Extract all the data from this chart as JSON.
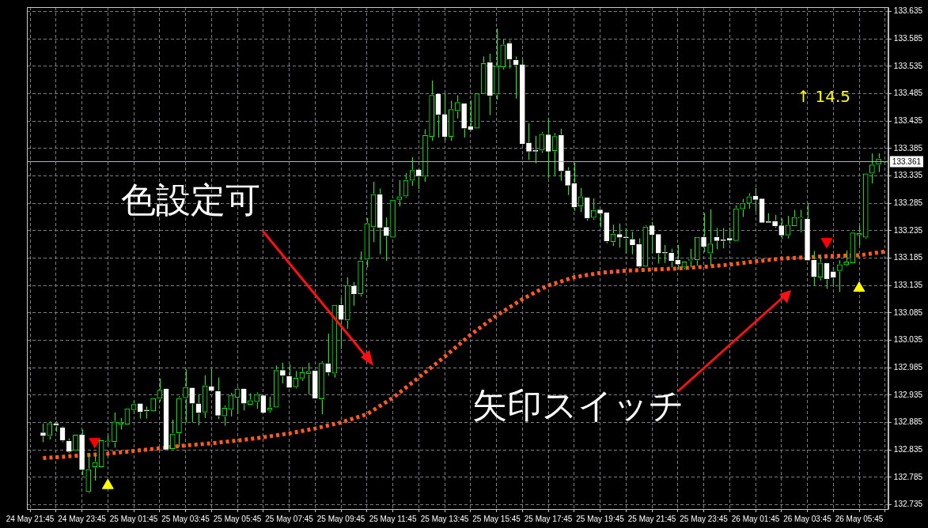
{
  "chart_data": {
    "type": "candlestick",
    "color": "#00ff00",
    "colors": [
      null,
      null,
      "#ffffff",
      "#00ff00",
      "#ffffff",
      "#ffffff",
      "#ffffff",
      "#00ff00",
      "#ffffff",
      "#00ff00",
      "#00ff00",
      "#00ff00",
      "#00ff00",
      "#00ff00",
      "#00ff00",
      "#00ff00",
      "#00ff00",
      "#ffffff",
      "#ffffff",
      "#00ff00",
      "#00ff00",
      "#ffffff",
      "#00ff00",
      "#00ff00",
      "#00ff00",
      "#ffffff",
      "#ffffff",
      "#00ff00",
      "#ffffff",
      "#ffffff",
      "#00ff00",
      "#00ff00",
      "#00ff00",
      "#ffffff",
      "#00ff00",
      "#00ff00",
      "#ffffff",
      "#00ff00",
      "#00ff00",
      "#ffffff",
      "#ffffff",
      "#00ff00",
      "#00ff00",
      "#00ff00",
      "#ffffff",
      "#00ff00",
      "#ffffff",
      "#00ff00",
      "#ffffff",
      "#00ff00",
      "#ffffff",
      "#00ff00",
      "#00ff00",
      "#00ff00",
      "#ffffff",
      "#ffffff",
      "#00ff00",
      "#00ff00",
      "#00ff00",
      "#00ff00",
      "#ffffff",
      "#00ff00",
      "#00ff00",
      "#ffffff",
      "#ffffff",
      "#00ff00",
      "#00ff00",
      "#ffffff",
      "#ffffff",
      "#00ff00",
      "#00ff00",
      "#ffffff",
      "#00ff00",
      "#00ff00",
      "#ffffff",
      "#ffffff",
      "#ffffff",
      "#ffffff",
      "#ffffff",
      "#00ff00",
      "#ffffff",
      "#00ff00",
      "#ffffff",
      "#ffffff",
      "#ffffff",
      "#00ff00",
      "#ffffff",
      "#00ff00",
      "#ffffff",
      "#ffffff",
      "#00ff00",
      "#ffffff",
      "#ffffff",
      "#ffffff",
      "#ffffff",
      "#00ff00",
      "#ffffff",
      "#ffffff",
      "#ffffff",
      "#ffffff",
      "#ffffff",
      "#00ff00",
      "#00ff00",
      "#00ff00",
      "#ffffff",
      "#00ff00",
      "#ffffff",
      "#ffffff",
      "#ffffff",
      "#00ff00",
      "#00ff00",
      "#00ff00",
      "#ffffff",
      "#ffffff",
      "#ffffff",
      "#ffffff",
      "#ffffff",
      "#00ff00",
      "#00ff00",
      "#00ff00",
      "#ffffff",
      "#ffffff",
      "#00ff00",
      "#ffffff",
      "#ffffff",
      "#00ff00",
      "#00ff00",
      "#00ff00",
      "#00ff00",
      "#00ff00",
      "#00ff00",
      "#00ff00",
      "#00ff00"
    ],
    "categories": [
      "24 May 21:45",
      null,
      null,
      null,
      null,
      null,
      null,
      null,
      "24 May 23:45",
      null,
      null,
      null,
      null,
      null,
      null,
      null,
      "25 May 01:45",
      null,
      null,
      null,
      null,
      null,
      null,
      null,
      "25 May 03:45",
      null,
      null,
      null,
      null,
      null,
      null,
      null,
      "25 May 05:45",
      null,
      null,
      null,
      null,
      null,
      null,
      null,
      "25 May 07:45",
      null,
      null,
      null,
      null,
      null,
      null,
      null,
      "25 May 09:45",
      null,
      null,
      null,
      null,
      null,
      null,
      null,
      "25 May 11:45",
      null,
      null,
      null,
      null,
      null,
      null,
      null,
      "25 May 13:45",
      null,
      null,
      null,
      null,
      null,
      null,
      null,
      "25 May 15:45",
      null,
      null,
      null,
      null,
      null,
      null,
      null,
      "25 May 17:45",
      null,
      null,
      null,
      null,
      null,
      null,
      null,
      "25 May 19:45",
      null,
      null,
      null,
      null,
      null,
      null,
      null,
      "25 May 21:45",
      null,
      null,
      null,
      null,
      null,
      null,
      null,
      "25 May 23:45",
      null,
      null,
      null,
      null,
      null,
      null,
      null,
      "26 May 01:45",
      null,
      null,
      null,
      null,
      null,
      null,
      null,
      "26 May 03:45",
      null,
      null,
      null,
      null,
      null,
      null,
      null,
      "26 May 05:45",
      null,
      null,
      null,
      null
    ],
    "ohlc": [
      null,
      null,
      [
        132.866,
        132.883,
        132.849,
        132.861
      ],
      [
        132.861,
        132.887,
        132.854,
        132.883
      ],
      [
        132.883,
        132.887,
        132.868,
        132.88
      ],
      [
        132.875,
        132.878,
        132.849,
        132.853
      ],
      [
        132.851,
        132.856,
        132.829,
        132.832
      ],
      [
        132.834,
        132.862,
        132.832,
        132.862
      ],
      [
        132.862,
        132.872,
        132.789,
        132.799
      ],
      [
        132.759,
        132.829,
        132.756,
        132.799
      ],
      [
        132.804,
        132.826,
        132.779,
        132.812
      ],
      [
        132.804,
        132.852,
        132.803,
        132.852
      ],
      [
        132.85,
        132.862,
        132.842,
        132.851
      ],
      [
        132.85,
        132.903,
        132.839,
        132.886
      ],
      [
        132.882,
        132.893,
        132.872,
        132.885
      ],
      [
        132.882,
        132.91,
        132.882,
        132.91
      ],
      [
        132.908,
        132.925,
        132.902,
        132.918
      ],
      [
        132.919,
        132.919,
        132.892,
        132.905
      ],
      [
        132.907,
        132.914,
        132.892,
        132.906
      ],
      [
        132.906,
        132.929,
        132.906,
        132.929
      ],
      [
        132.929,
        132.965,
        132.923,
        132.944
      ],
      [
        132.946,
        132.946,
        132.834,
        132.836
      ],
      [
        132.837,
        132.89,
        132.835,
        132.864
      ],
      [
        132.866,
        132.933,
        132.84,
        132.929
      ],
      [
        132.93,
        132.982,
        132.885,
        132.949
      ],
      [
        132.948,
        132.948,
        132.885,
        132.92
      ],
      [
        132.919,
        132.937,
        132.88,
        132.903
      ],
      [
        132.904,
        132.971,
        132.893,
        132.952
      ],
      [
        132.95,
        132.983,
        132.941,
        132.943
      ],
      [
        132.942,
        132.967,
        132.891,
        132.898
      ],
      [
        132.897,
        132.916,
        132.879,
        132.911
      ],
      [
        132.909,
        132.939,
        132.896,
        132.934
      ],
      [
        132.931,
        132.95,
        132.9,
        132.946
      ],
      [
        132.946,
        132.946,
        132.907,
        132.92
      ],
      [
        132.918,
        132.938,
        132.916,
        132.925
      ],
      [
        132.923,
        132.94,
        132.91,
        132.936
      ],
      [
        132.934,
        132.934,
        132.903,
        132.903
      ],
      [
        132.907,
        132.932,
        132.903,
        132.911
      ],
      [
        132.913,
        132.989,
        132.913,
        132.98
      ],
      [
        132.98,
        132.994,
        132.956,
        132.971
      ],
      [
        132.969,
        132.991,
        132.949,
        132.949
      ],
      [
        132.95,
        132.979,
        132.947,
        132.966
      ],
      [
        132.966,
        132.986,
        132.961,
        132.976
      ],
      [
        132.974,
        132.994,
        132.936,
        132.978
      ],
      [
        132.979,
        132.979,
        132.929,
        132.929
      ],
      [
        132.928,
        132.997,
        132.9,
        132.993
      ],
      [
        132.992,
        133.047,
        132.97,
        132.977
      ],
      [
        132.975,
        133.099,
        132.967,
        133.099
      ],
      [
        133.099,
        133.112,
        133.019,
        133.073
      ],
      [
        133.072,
        133.15,
        133.056,
        133.135
      ],
      [
        133.134,
        133.141,
        133.098,
        133.12
      ],
      [
        133.12,
        133.197,
        133.115,
        133.18
      ],
      [
        133.183,
        133.258,
        133.168,
        133.248
      ],
      [
        133.242,
        133.324,
        133.214,
        133.301
      ],
      [
        133.301,
        133.312,
        133.192,
        133.241
      ],
      [
        133.241,
        133.259,
        133.18,
        133.226
      ],
      [
        133.223,
        133.291,
        133.223,
        133.291
      ],
      [
        133.292,
        133.327,
        133.279,
        133.297
      ],
      [
        133.298,
        133.34,
        133.295,
        133.327
      ],
      [
        133.327,
        133.369,
        133.317,
        133.345
      ],
      [
        133.346,
        133.346,
        133.311,
        133.335
      ],
      [
        133.334,
        133.42,
        133.324,
        133.409
      ],
      [
        133.407,
        133.509,
        133.399,
        133.482
      ],
      [
        133.484,
        133.484,
        133.405,
        133.447
      ],
      [
        133.447,
        133.486,
        133.399,
        133.407
      ],
      [
        133.407,
        133.472,
        133.399,
        133.456
      ],
      [
        133.454,
        133.482,
        133.44,
        133.469
      ],
      [
        133.467,
        133.467,
        133.405,
        133.422
      ],
      [
        133.425,
        133.473,
        133.417,
        133.42
      ],
      [
        133.422,
        133.487,
        133.422,
        133.485
      ],
      [
        133.485,
        133.553,
        133.485,
        133.54
      ],
      [
        133.542,
        133.558,
        133.446,
        133.482
      ],
      [
        133.484,
        133.604,
        133.474,
        133.535
      ],
      [
        133.534,
        133.584,
        133.529,
        133.574
      ],
      [
        133.577,
        133.582,
        133.531,
        133.548
      ],
      [
        133.546,
        133.553,
        133.476,
        133.538
      ],
      [
        133.538,
        133.548,
        133.391,
        133.394
      ],
      [
        133.395,
        133.431,
        133.364,
        133.38
      ],
      [
        133.381,
        133.408,
        133.358,
        133.38
      ],
      [
        133.382,
        133.415,
        133.377,
        133.411
      ],
      [
        133.41,
        133.441,
        133.331,
        133.38
      ],
      [
        133.381,
        133.413,
        133.336,
        133.407
      ],
      [
        133.409,
        133.421,
        133.326,
        133.344
      ],
      [
        133.344,
        133.351,
        133.3,
        133.318
      ],
      [
        133.321,
        133.359,
        133.271,
        133.278
      ],
      [
        133.28,
        133.313,
        133.269,
        133.297
      ],
      [
        133.295,
        133.295,
        133.253,
        133.258
      ],
      [
        133.259,
        133.294,
        133.255,
        133.272
      ],
      [
        133.273,
        133.273,
        133.241,
        133.267
      ],
      [
        133.268,
        133.268,
        133.212,
        133.216
      ],
      [
        133.215,
        133.246,
        133.207,
        133.229
      ],
      [
        133.228,
        133.248,
        133.204,
        133.223
      ],
      [
        133.223,
        133.24,
        133.193,
        133.222
      ],
      [
        133.219,
        133.233,
        133.192,
        133.209
      ],
      [
        133.21,
        133.221,
        133.167,
        133.17
      ],
      [
        133.17,
        133.245,
        133.168,
        133.242
      ],
      [
        133.244,
        133.251,
        133.195,
        133.228
      ],
      [
        133.228,
        133.23,
        133.175,
        133.194
      ],
      [
        133.195,
        133.209,
        133.176,
        133.194
      ],
      [
        133.194,
        133.202,
        133.168,
        133.18
      ],
      [
        133.181,
        133.209,
        133.164,
        133.174
      ],
      [
        133.168,
        133.178,
        133.164,
        133.178
      ],
      [
        133.181,
        133.202,
        133.168,
        133.182
      ],
      [
        133.182,
        133.223,
        133.171,
        133.223
      ],
      [
        133.223,
        133.267,
        133.196,
        133.206
      ],
      [
        133.194,
        133.274,
        133.171,
        133.211
      ],
      [
        133.223,
        133.24,
        133.201,
        133.217
      ],
      [
        133.218,
        133.24,
        133.203,
        133.217
      ],
      [
        133.221,
        133.241,
        133.211,
        133.218
      ],
      [
        133.217,
        133.281,
        133.217,
        133.275
      ],
      [
        133.275,
        133.293,
        133.26,
        133.285
      ],
      [
        133.285,
        133.303,
        133.275,
        133.297
      ],
      [
        133.298,
        133.313,
        133.27,
        133.292
      ],
      [
        133.293,
        133.293,
        133.249,
        133.25
      ],
      [
        133.251,
        133.267,
        133.248,
        133.25
      ],
      [
        133.252,
        133.264,
        133.24,
        133.244
      ],
      [
        133.244,
        133.257,
        133.22,
        133.227
      ],
      [
        133.227,
        133.262,
        133.221,
        133.245
      ],
      [
        133.244,
        133.273,
        133.243,
        133.259
      ],
      [
        133.258,
        133.273,
        133.232,
        133.258
      ],
      [
        133.256,
        133.285,
        133.179,
        133.181
      ],
      [
        133.181,
        133.198,
        133.135,
        133.151
      ],
      [
        133.15,
        133.188,
        133.144,
        133.176
      ],
      [
        133.175,
        133.176,
        133.129,
        133.147
      ],
      [
        133.16,
        133.169,
        133.136,
        133.15
      ],
      [
        133.162,
        133.181,
        133.123,
        133.173
      ],
      [
        133.173,
        133.199,
        133.17,
        133.178
      ],
      [
        133.176,
        133.233,
        133.175,
        133.231
      ],
      [
        133.227,
        133.245,
        133.208,
        133.23
      ],
      [
        133.223,
        133.339,
        133.22,
        133.339
      ],
      [
        133.34,
        133.376,
        133.321,
        133.355
      ],
      [
        133.356,
        133.376,
        133.342,
        133.366
      ],
      [
        133.36,
        133.362,
        133.358,
        133.361
      ]
    ],
    "series": [
      {
        "type": "line",
        "color": "#ff5a1a",
        "line_style": "dashed",
        "marker": "none",
        "values": [
          null,
          null,
          132.82,
          null,
          null,
          null,
          null,
          null,
          null,
          null,
          null,
          null,
          132.828,
          null,
          null,
          null,
          132.833,
          null,
          null,
          null,
          132.838,
          null,
          null,
          null,
          132.843,
          null,
          null,
          null,
          132.847,
          null,
          null,
          null,
          132.852,
          null,
          null,
          null,
          132.858,
          null,
          null,
          null,
          132.865,
          null,
          null,
          null,
          132.874,
          null,
          null,
          null,
          132.885,
          null,
          null,
          null,
          132.9,
          null,
          null,
          null,
          132.93,
          null,
          null,
          null,
          132.967,
          null,
          null,
          null,
          133.005,
          null,
          null,
          null,
          133.045,
          null,
          null,
          null,
          133.08,
          null,
          null,
          null,
          133.11,
          null,
          null,
          null,
          133.135,
          null,
          null,
          null,
          133.15,
          null,
          null,
          null,
          133.158,
          null,
          null,
          null,
          133.162,
          null,
          null,
          null,
          133.164,
          null,
          null,
          null,
          133.166,
          null,
          null,
          null,
          133.169,
          null,
          null,
          null,
          133.173,
          null,
          null,
          null,
          133.179,
          null,
          null,
          null,
          133.184,
          null,
          null,
          null,
          null,
          null,
          null,
          null,
          133.189,
          null,
          null,
          null,
          133.19,
          null,
          null,
          null,
          133.197
        ]
      },
      {
        "type": "scatter",
        "color": "#ff0000",
        "marker": "triangle",
        "values": [
          null,
          null,
          null,
          null,
          null,
          null,
          null,
          null,
          null,
          null,
          132.85,
          null,
          null,
          null,
          null,
          null,
          null,
          null,
          null,
          null,
          null,
          null,
          null,
          null,
          null,
          null,
          null,
          null,
          null,
          null,
          null,
          null,
          null,
          null,
          null,
          null,
          null,
          null,
          null,
          null,
          null,
          null,
          null,
          null,
          null,
          null,
          null,
          null,
          null,
          null,
          null,
          null,
          null,
          null,
          null,
          null,
          null,
          null,
          null,
          null,
          null,
          null,
          null,
          null,
          null,
          null,
          null,
          null,
          null,
          null,
          null,
          null,
          null,
          null,
          null,
          null,
          null,
          null,
          null,
          null,
          null,
          null,
          null,
          null,
          null,
          null,
          null,
          null,
          null,
          null,
          null,
          null,
          null,
          null,
          null,
          null,
          null,
          null,
          null,
          null,
          null,
          null,
          null,
          null,
          null,
          null,
          null,
          null,
          null,
          null,
          null,
          null,
          null,
          null,
          null,
          null,
          null,
          null,
          null,
          null,
          null,
          null,
          null,
          133.215,
          null,
          null,
          null,
          null,
          null,
          null,
          null,
          null,
          null
        ]
      },
      {
        "type": "scatter",
        "color": "#ffff00",
        "marker": "triangle",
        "values": [
          null,
          null,
          null,
          null,
          null,
          null,
          null,
          null,
          null,
          null,
          null,
          null,
          132.77,
          null,
          null,
          null,
          null,
          null,
          null,
          null,
          null,
          null,
          null,
          null,
          null,
          null,
          null,
          null,
          null,
          null,
          null,
          null,
          null,
          null,
          null,
          null,
          null,
          null,
          null,
          null,
          null,
          null,
          null,
          null,
          null,
          null,
          null,
          null,
          null,
          null,
          null,
          null,
          null,
          null,
          null,
          null,
          null,
          null,
          null,
          null,
          null,
          null,
          null,
          null,
          null,
          null,
          null,
          null,
          null,
          null,
          null,
          null,
          null,
          null,
          null,
          null,
          null,
          null,
          null,
          null,
          null,
          null,
          null,
          null,
          null,
          null,
          null,
          null,
          null,
          null,
          null,
          null,
          null,
          null,
          null,
          null,
          null,
          null,
          null,
          null,
          null,
          null,
          null,
          null,
          null,
          null,
          null,
          null,
          null,
          null,
          null,
          null,
          null,
          null,
          null,
          null,
          null,
          null,
          null,
          null,
          null,
          null,
          null,
          null,
          null,
          null,
          null,
          null,
          133.13,
          null,
          null,
          null,
          null
        ]
      }
    ],
    "ylim": [
      132.727,
      133.643
    ],
    "yticks": [
      132.735,
      132.785,
      132.835,
      132.885,
      132.935,
      132.985,
      133.035,
      133.085,
      133.135,
      133.185,
      133.235,
      133.285,
      133.335,
      133.385,
      133.435,
      133.485,
      133.535,
      133.585,
      133.635
    ],
    "ref_lines": [
      {
        "axis": "y",
        "value": 133.361,
        "label": "133.361",
        "color": "#b0b4c0"
      }
    ],
    "annotations": [
      "色設定可",
      "矢印スイッチ",
      "↑ 14.5"
    ],
    "grid": true,
    "legend": false
  }
}
